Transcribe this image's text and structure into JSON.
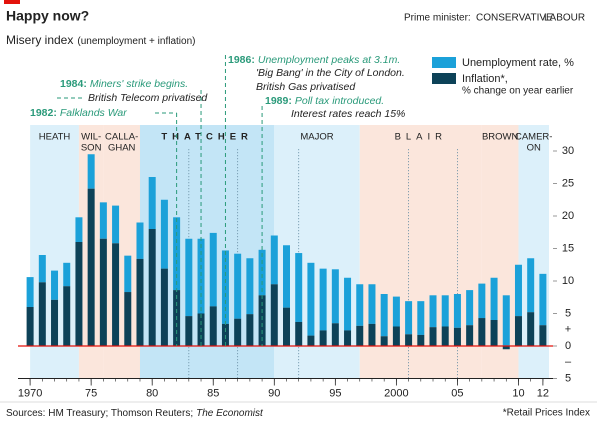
{
  "chart_data": {
    "type": "stacked-bar",
    "title": "Happy now?",
    "subtitle": "Misery index",
    "subtitle_note": "(unemployment + inflation)",
    "party_legend_title": "Prime minister:",
    "parties": {
      "conservative": {
        "label": "CONSERVATIVE",
        "color": "#2e9fd0",
        "band": "#dcf0fa"
      },
      "labour": {
        "label": "LABOUR",
        "color": "#e0643c",
        "band": "#fbe6dc"
      }
    },
    "emphasis_band": "#c3e5f6",
    "emphasis_color": "#0e3c52",
    "eras": [
      {
        "label": [
          "HEATH"
        ],
        "party": "conservative",
        "start": 1970,
        "end": 1974
      },
      {
        "label": [
          "WIL-",
          "SON"
        ],
        "party": "labour",
        "start": 1974,
        "end": 1976
      },
      {
        "label": [
          "CALLA-",
          "GHAN"
        ],
        "party": "labour",
        "start": 1976,
        "end": 1979
      },
      {
        "label": [
          "THATCHER"
        ],
        "party": "conservative",
        "start": 1979,
        "end": 1990,
        "emphasis": true
      },
      {
        "label": [
          "MAJOR"
        ],
        "party": "conservative",
        "start": 1990,
        "end": 1997
      },
      {
        "label": [
          "BLAIR"
        ],
        "party": "labour",
        "start": 1997,
        "end": 2007
      },
      {
        "label": [
          "BROWN"
        ],
        "party": "labour",
        "start": 2007,
        "end": 2010
      },
      {
        "label": [
          "CAMER-",
          "ON"
        ],
        "party": "conservative",
        "start": 2010,
        "end": 2012.5
      }
    ],
    "election_lines": [
      1983,
      1987,
      1992,
      2001,
      2005
    ],
    "annotation_color": "#2a9a7a",
    "annotations": [
      {
        "x": 1982,
        "label": "1982:",
        "lines": [
          "Falklands War"
        ]
      },
      {
        "x": 1984,
        "label": "1984:",
        "lines": [
          "Miners' strike begins.",
          "British Telecom privatised"
        ]
      },
      {
        "x": 1986,
        "label": "1986:",
        "lines": [
          "Unemployment peaks at 3.1m.",
          "'Big Bang' in the City of London.",
          "British Gas privatised"
        ]
      },
      {
        "x": 1989,
        "label": "1989:",
        "lines": [
          "Poll tax introduced.",
          "Interest rates reach 15%"
        ]
      }
    ],
    "x": [
      1970,
      1971,
      1972,
      1973,
      1974,
      1975,
      1976,
      1977,
      1978,
      1979,
      1980,
      1981,
      1982,
      1983,
      1984,
      1985,
      1986,
      1987,
      1988,
      1989,
      1990,
      1991,
      1992,
      1993,
      1994,
      1995,
      1996,
      1997,
      1998,
      1999,
      2000,
      2001,
      2002,
      2003,
      2004,
      2005,
      2006,
      2007,
      2008,
      2009,
      2010,
      2011,
      2012
    ],
    "series": [
      {
        "name": "Unemployment rate, %",
        "color": "#1ba1d9",
        "values": [
          4.6,
          4.2,
          4.5,
          3.6,
          3.8,
          5.3,
          5.6,
          5.8,
          5.6,
          5.6,
          8.0,
          10.6,
          11.2,
          11.9,
          11.5,
          11.3,
          11.3,
          10.0,
          8.6,
          7.0,
          7.5,
          9.6,
          10.6,
          11.2,
          9.5,
          8.3,
          8.1,
          6.4,
          6.1,
          6.5,
          4.6,
          5.1,
          5.2,
          4.9,
          4.8,
          5.2,
          5.4,
          5.3,
          6.5,
          7.8,
          7.9,
          8.3,
          7.9
        ]
      },
      {
        "name": "Inflation*,",
        "color": "#0d4258",
        "values": [
          6.0,
          9.8,
          7.1,
          9.2,
          16.0,
          24.2,
          16.5,
          15.8,
          8.3,
          13.4,
          18.0,
          11.9,
          8.6,
          4.6,
          5.0,
          6.1,
          3.4,
          4.2,
          4.9,
          7.8,
          9.5,
          5.9,
          3.7,
          1.6,
          2.4,
          3.5,
          2.4,
          3.1,
          3.4,
          1.5,
          3.0,
          1.8,
          1.7,
          2.9,
          3.0,
          2.8,
          3.2,
          4.3,
          4.0,
          -0.5,
          4.6,
          5.2,
          3.2
        ]
      }
    ],
    "legend_note": "% change on year earlier",
    "xlim": [
      1969.5,
      2012.5
    ],
    "xticks": [
      1970,
      {
        "value": 1975,
        "label": "75"
      },
      {
        "value": 1980,
        "label": "80"
      },
      {
        "value": 1985,
        "label": "85"
      },
      {
        "value": 1990,
        "label": "90"
      },
      {
        "value": 1995,
        "label": "95"
      },
      2000,
      {
        "value": 2005,
        "label": "05"
      },
      {
        "value": 2010,
        "label": "10"
      },
      {
        "value": 2012,
        "label": "12"
      }
    ],
    "ylim": [
      -5,
      34
    ],
    "yticks": [
      30,
      25,
      20,
      15,
      10,
      5,
      0,
      {
        "value": -5,
        "label": "5"
      }
    ],
    "y_signs": [
      "+",
      "–"
    ],
    "zero_line_color": "#e3120b",
    "grid": false,
    "source": "Sources: HM Treasury; Thomson Reuters;",
    "source_italic": "The Economist",
    "footnote": "*Retail Prices Index"
  }
}
